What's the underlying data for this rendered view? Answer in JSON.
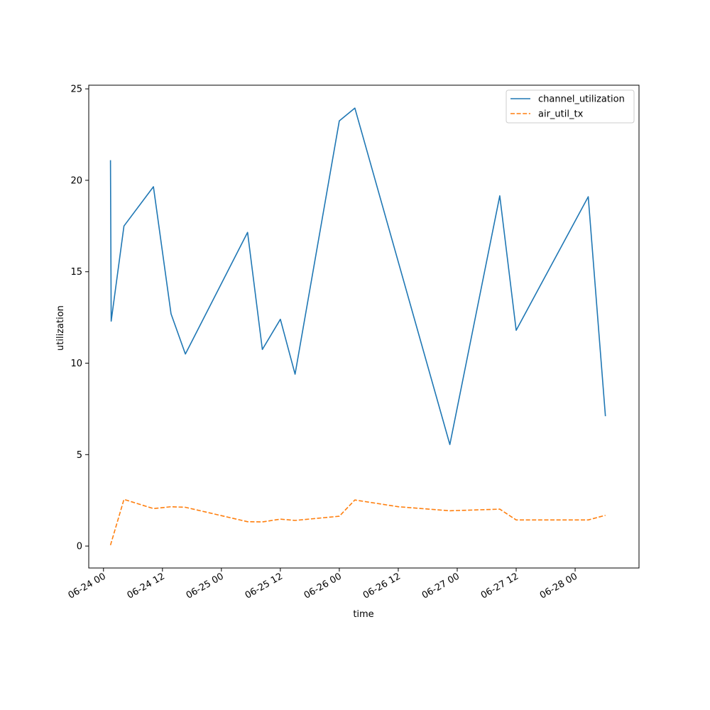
{
  "chart_data": {
    "type": "line",
    "title": "",
    "xlabel": "time",
    "ylabel": "utilization",
    "x_type": "datetime",
    "xlim": [
      "2023-06-23T21:00",
      "2023-06-28T13:00"
    ],
    "ylim": [
      -1.2,
      25.2
    ],
    "x_ticks": [
      {
        "value": "2023-06-24T00:00",
        "label": "06-24 00"
      },
      {
        "value": "2023-06-24T12:00",
        "label": "06-24 12"
      },
      {
        "value": "2023-06-25T00:00",
        "label": "06-25 00"
      },
      {
        "value": "2023-06-25T12:00",
        "label": "06-25 12"
      },
      {
        "value": "2023-06-26T00:00",
        "label": "06-26 00"
      },
      {
        "value": "2023-06-26T12:00",
        "label": "06-26 12"
      },
      {
        "value": "2023-06-27T00:00",
        "label": "06-27 00"
      },
      {
        "value": "2023-06-27T12:00",
        "label": "06-27 12"
      },
      {
        "value": "2023-06-28T00:00",
        "label": "06-28 00"
      }
    ],
    "y_ticks": [
      {
        "value": 0,
        "label": "0"
      },
      {
        "value": 5,
        "label": "5"
      },
      {
        "value": 10,
        "label": "10"
      },
      {
        "value": 15,
        "label": "15"
      },
      {
        "value": 20,
        "label": "20"
      },
      {
        "value": 25,
        "label": "25"
      }
    ],
    "grid": false,
    "legend": "top-right",
    "series": [
      {
        "name": "channel_utilization",
        "color": "#1f77b4",
        "style": "solid",
        "points": [
          {
            "x": "2023-06-24T01:25",
            "y": 21.1
          },
          {
            "x": "2023-06-24T01:34",
            "y": 12.3
          },
          {
            "x": "2023-06-24T04:10",
            "y": 17.5
          },
          {
            "x": "2023-06-24T10:10",
            "y": 19.65
          },
          {
            "x": "2023-06-24T13:45",
            "y": 12.7
          },
          {
            "x": "2023-06-24T16:40",
            "y": 10.5
          },
          {
            "x": "2023-06-25T05:20",
            "y": 17.15
          },
          {
            "x": "2023-06-25T08:20",
            "y": 10.75
          },
          {
            "x": "2023-06-25T12:00",
            "y": 12.4
          },
          {
            "x": "2023-06-25T15:00",
            "y": 9.4
          },
          {
            "x": "2023-06-26T00:00",
            "y": 23.25
          },
          {
            "x": "2023-06-26T03:10",
            "y": 23.95
          },
          {
            "x": "2023-06-26T22:30",
            "y": 5.55
          },
          {
            "x": "2023-06-27T08:40",
            "y": 19.15
          },
          {
            "x": "2023-06-27T12:00",
            "y": 11.8
          },
          {
            "x": "2023-06-28T02:40",
            "y": 19.1
          },
          {
            "x": "2023-06-28T06:10",
            "y": 7.1
          }
        ]
      },
      {
        "name": "air_util_tx",
        "color": "#ff7f0e",
        "style": "dashed",
        "points": [
          {
            "x": "2023-06-24T01:25",
            "y": 0.05
          },
          {
            "x": "2023-06-24T04:10",
            "y": 2.55
          },
          {
            "x": "2023-06-24T10:10",
            "y": 2.05
          },
          {
            "x": "2023-06-24T13:45",
            "y": 2.15
          },
          {
            "x": "2023-06-24T16:40",
            "y": 2.12
          },
          {
            "x": "2023-06-25T05:20",
            "y": 1.33
          },
          {
            "x": "2023-06-25T08:20",
            "y": 1.32
          },
          {
            "x": "2023-06-25T12:00",
            "y": 1.47
          },
          {
            "x": "2023-06-25T15:00",
            "y": 1.4
          },
          {
            "x": "2023-06-26T00:00",
            "y": 1.63
          },
          {
            "x": "2023-06-26T03:10",
            "y": 2.52
          },
          {
            "x": "2023-06-26T12:00",
            "y": 2.15
          },
          {
            "x": "2023-06-26T22:30",
            "y": 1.93
          },
          {
            "x": "2023-06-27T08:40",
            "y": 2.02
          },
          {
            "x": "2023-06-27T12:00",
            "y": 1.43
          },
          {
            "x": "2023-06-28T02:40",
            "y": 1.43
          },
          {
            "x": "2023-06-28T06:10",
            "y": 1.68
          }
        ]
      }
    ]
  }
}
